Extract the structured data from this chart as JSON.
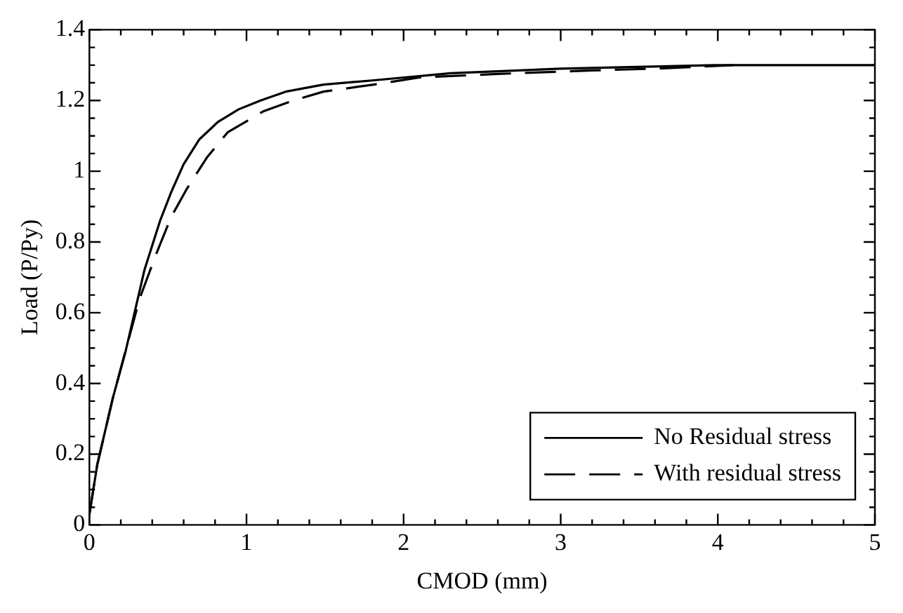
{
  "chart_data": {
    "type": "line",
    "xlabel": "CMOD (mm)",
    "ylabel": "Load (P/Py)",
    "xlim": [
      0,
      5
    ],
    "ylim": [
      0,
      1.4
    ],
    "xticks": [
      0,
      {
        "value": 0.2,
        "label": null
      },
      {
        "value": 0.4,
        "label": null
      },
      {
        "value": 0.6,
        "label": null
      },
      {
        "value": 0.8,
        "label": null
      },
      1,
      {
        "value": 1.2,
        "label": null
      },
      {
        "value": 1.4,
        "label": null
      },
      {
        "value": 1.6,
        "label": null
      },
      {
        "value": 1.8,
        "label": null
      },
      2,
      {
        "value": 2.2,
        "label": null
      },
      {
        "value": 2.4,
        "label": null
      },
      {
        "value": 2.6,
        "label": null
      },
      {
        "value": 2.8,
        "label": null
      },
      3,
      {
        "value": 3.2,
        "label": null
      },
      {
        "value": 3.4,
        "label": null
      },
      {
        "value": 3.6,
        "label": null
      },
      {
        "value": 3.8,
        "label": null
      },
      4,
      {
        "value": 4.2,
        "label": null
      },
      {
        "value": 4.4,
        "label": null
      },
      {
        "value": 4.6,
        "label": null
      },
      {
        "value": 4.8,
        "label": null
      },
      5
    ],
    "yticks": [
      0,
      {
        "value": 0.05,
        "label": null
      },
      {
        "value": 0.1,
        "label": null
      },
      {
        "value": 0.15,
        "label": null
      },
      0.2,
      {
        "value": 0.25,
        "label": null
      },
      {
        "value": 0.3,
        "label": null
      },
      {
        "value": 0.35,
        "label": null
      },
      0.4,
      {
        "value": 0.45,
        "label": null
      },
      {
        "value": 0.5,
        "label": null
      },
      {
        "value": 0.55,
        "label": null
      },
      0.6,
      {
        "value": 0.65,
        "label": null
      },
      {
        "value": 0.7,
        "label": null
      },
      {
        "value": 0.75,
        "label": null
      },
      0.8,
      {
        "value": 0.85,
        "label": null
      },
      {
        "value": 0.9,
        "label": null
      },
      {
        "value": 0.95,
        "label": null
      },
      1,
      {
        "value": 1.05,
        "label": null
      },
      {
        "value": 1.1,
        "label": null
      },
      {
        "value": 1.15,
        "label": null
      },
      1.2,
      {
        "value": 1.25,
        "label": null
      },
      {
        "value": 1.3,
        "label": null
      },
      {
        "value": 1.35,
        "label": null
      },
      1.4
    ],
    "grid": false,
    "legend": "bottom right",
    "series": [
      {
        "name": "No Residual stress",
        "color": "#000000",
        "line_style": "solid",
        "x": [
          0,
          0.05,
          0.15,
          0.23,
          0.35,
          0.45,
          0.52,
          0.6,
          0.7,
          0.82,
          0.95,
          1.09,
          1.25,
          1.49,
          1.81,
          2.3,
          3,
          4,
          5
        ],
        "values": [
          0.03,
          0.17,
          0.36,
          0.49,
          0.72,
          0.86,
          0.94,
          1.02,
          1.09,
          1.14,
          1.175,
          1.2,
          1.225,
          1.245,
          1.257,
          1.277,
          1.29,
          1.3,
          1.3
        ]
      },
      {
        "name": "With residual stress",
        "color": "#000000",
        "line_style": "dashed",
        "x": [
          0,
          0.05,
          0.15,
          0.32,
          0.42,
          0.52,
          0.62,
          0.75,
          0.88,
          1.11,
          1.3,
          1.49,
          1.81,
          2.1,
          2.6,
          3.2,
          3.6,
          4.1
        ],
        "values": [
          0.03,
          0.17,
          0.36,
          0.64,
          0.76,
          0.87,
          0.95,
          1.04,
          1.11,
          1.17,
          1.2,
          1.225,
          1.245,
          1.265,
          1.275,
          1.285,
          1.29,
          1.3
        ]
      }
    ]
  }
}
